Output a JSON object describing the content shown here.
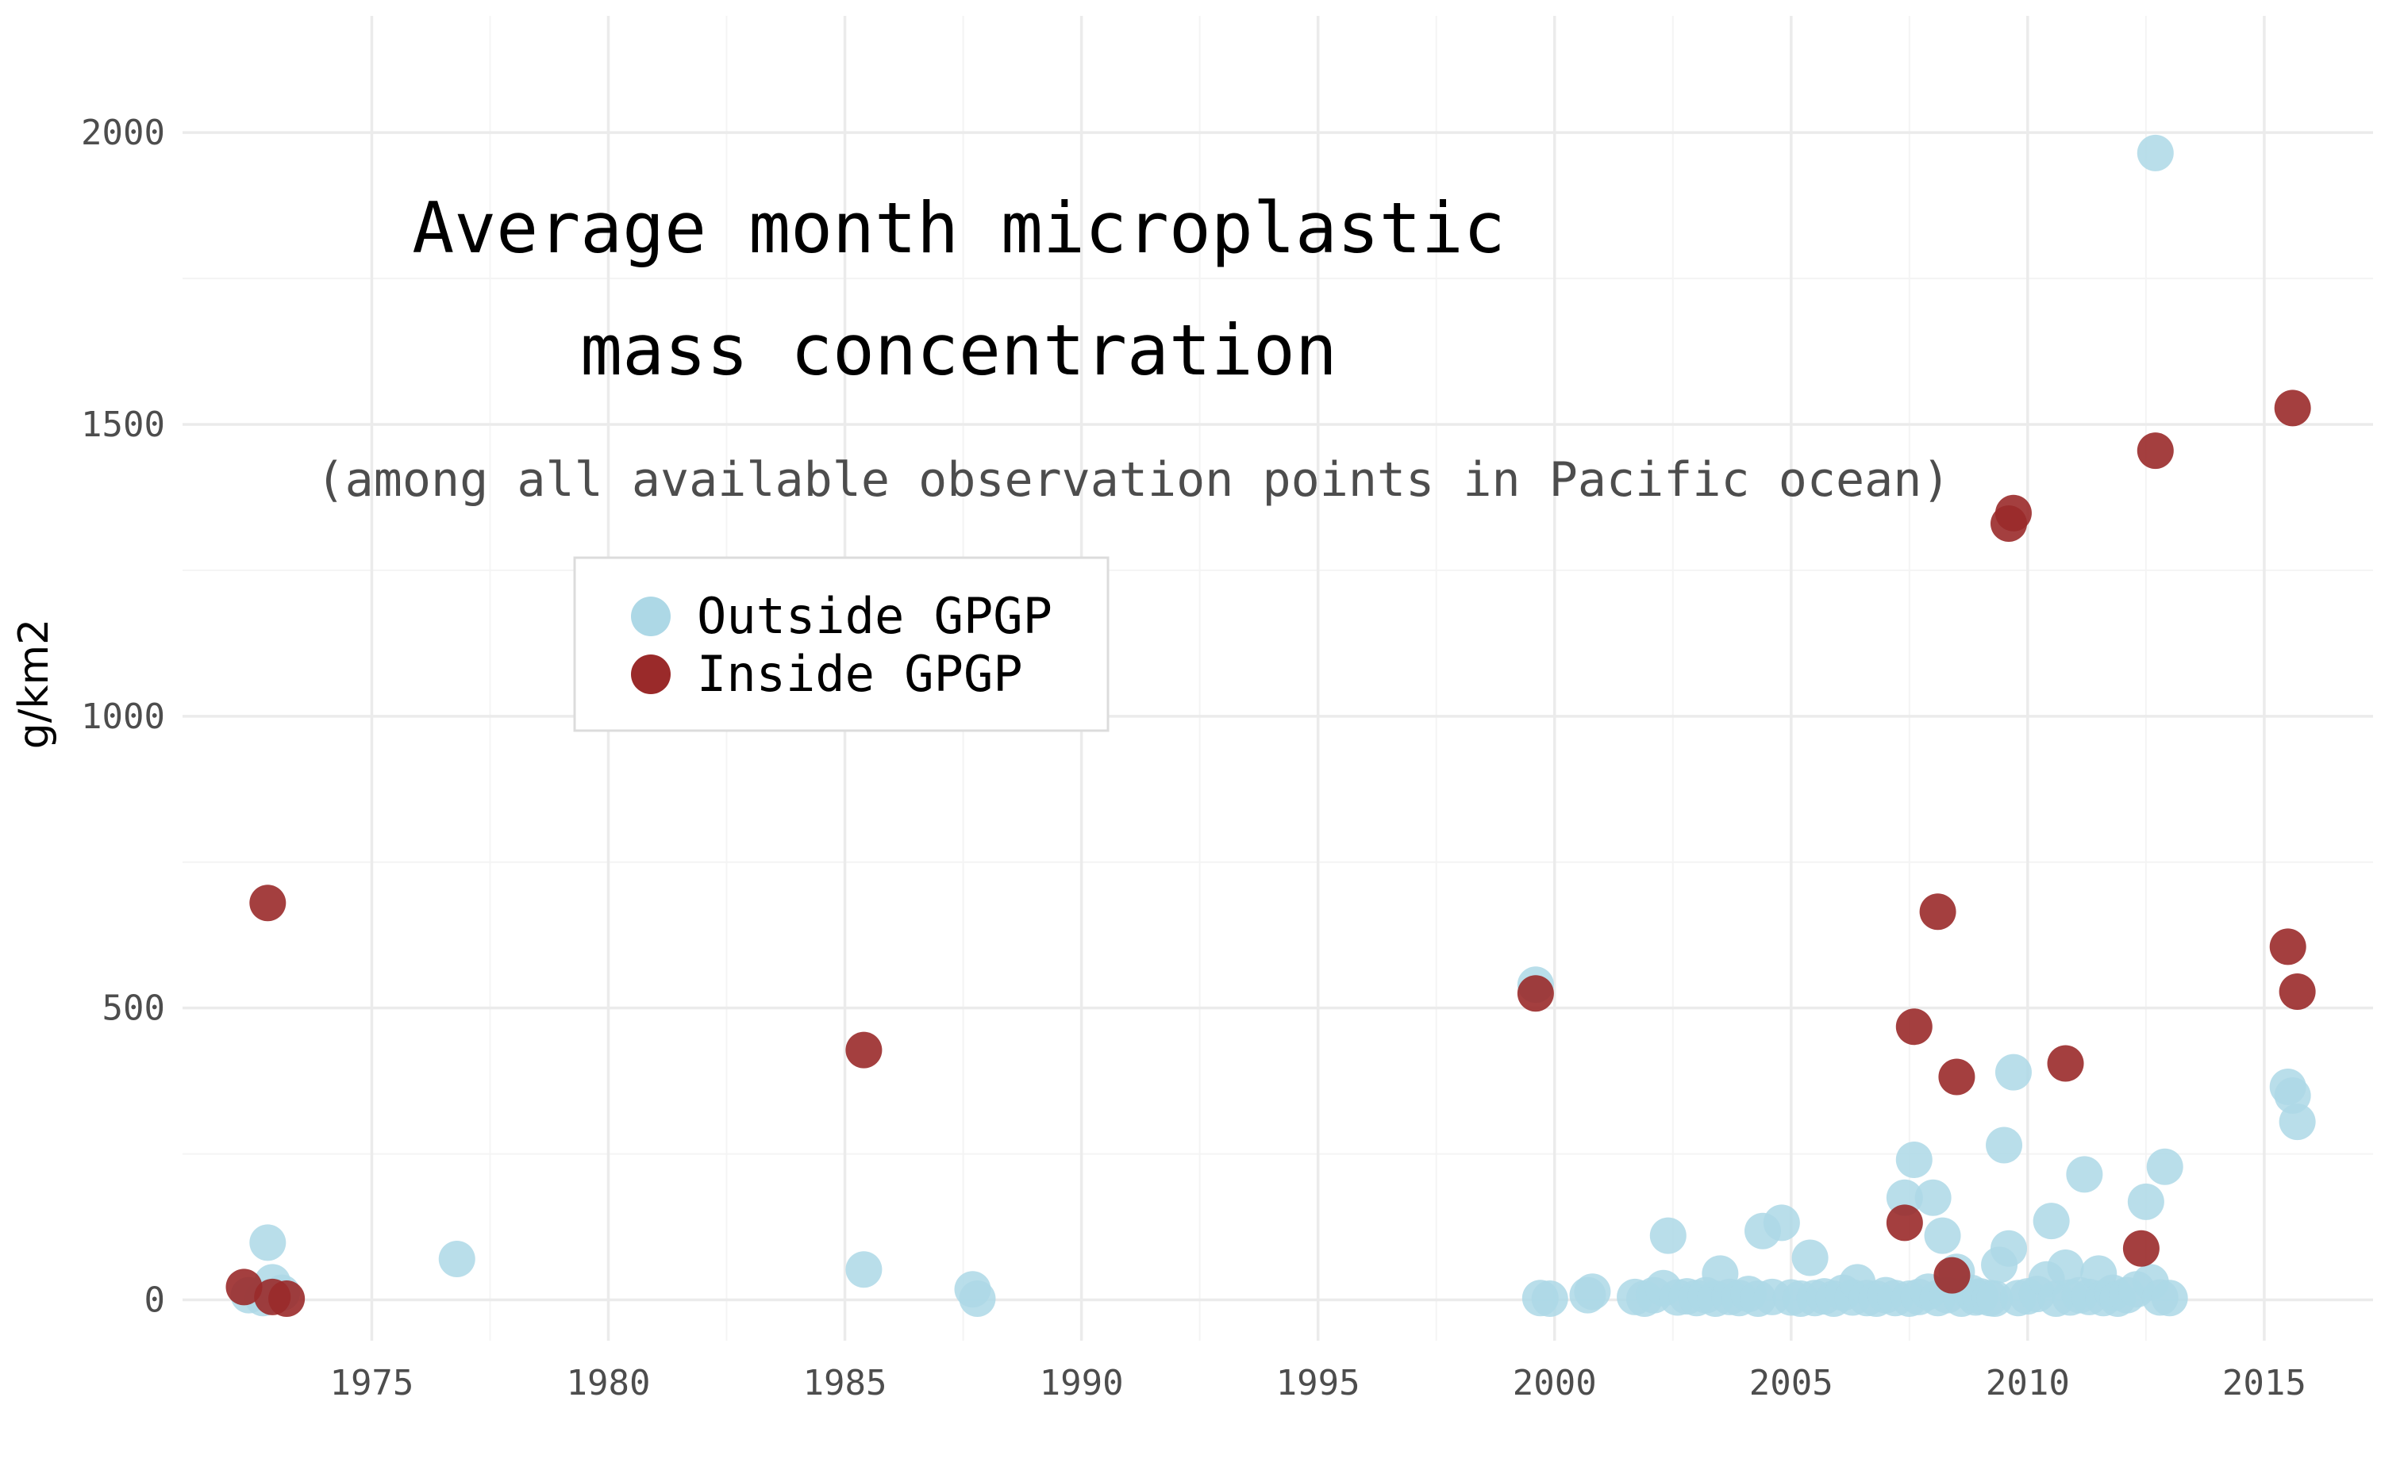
{
  "chart_data": {
    "type": "scatter",
    "title": "Average month microplastic",
    "title_line2": "mass concentration",
    "subtitle": "(among all available observation points in Pacific ocean)",
    "xlabel": "",
    "ylabel": "g/km2",
    "xlim": [
      1971,
      2017.3
    ],
    "ylim": [
      -70,
      2200
    ],
    "x_ticks": [
      1975,
      1980,
      1985,
      1990,
      1995,
      2000,
      2005,
      2010,
      2015
    ],
    "y_ticks": [
      0,
      500,
      1000,
      1500,
      2000
    ],
    "grid": true,
    "legend_position": "upper-left-inside",
    "series": [
      {
        "name": "Outside GPGP",
        "color": "#add8e6",
        "points": [
          [
            1972.4,
            8
          ],
          [
            1972.7,
            3
          ],
          [
            1972.8,
            98
          ],
          [
            1972.9,
            30
          ],
          [
            1973.1,
            12
          ],
          [
            1976.8,
            70
          ],
          [
            1985.4,
            52
          ],
          [
            1987.7,
            18
          ],
          [
            1987.8,
            2
          ],
          [
            1999.6,
            540
          ],
          [
            1999.7,
            3
          ],
          [
            1999.9,
            2
          ],
          [
            2000.7,
            8
          ],
          [
            2000.8,
            14
          ],
          [
            2001.7,
            5
          ],
          [
            2001.9,
            2
          ],
          [
            2002.1,
            8
          ],
          [
            2002.3,
            20
          ],
          [
            2002.4,
            110
          ],
          [
            2002.6,
            4
          ],
          [
            2002.8,
            6
          ],
          [
            2003.0,
            3
          ],
          [
            2003.2,
            8
          ],
          [
            2003.4,
            2
          ],
          [
            2003.5,
            45
          ],
          [
            2003.7,
            5
          ],
          [
            2003.9,
            3
          ],
          [
            2004.1,
            10
          ],
          [
            2004.3,
            2
          ],
          [
            2004.4,
            118
          ],
          [
            2004.6,
            5
          ],
          [
            2004.8,
            132
          ],
          [
            2005.0,
            4
          ],
          [
            2005.2,
            2
          ],
          [
            2005.4,
            72
          ],
          [
            2005.5,
            3
          ],
          [
            2005.7,
            6
          ],
          [
            2005.9,
            2
          ],
          [
            2006.1,
            12
          ],
          [
            2006.3,
            4
          ],
          [
            2006.4,
            30
          ],
          [
            2006.6,
            3
          ],
          [
            2006.8,
            2
          ],
          [
            2007.0,
            8
          ],
          [
            2007.2,
            3
          ],
          [
            2007.4,
            175
          ],
          [
            2007.5,
            2
          ],
          [
            2007.6,
            240
          ],
          [
            2007.7,
            5
          ],
          [
            2007.9,
            14
          ],
          [
            2008.0,
            175
          ],
          [
            2008.1,
            3
          ],
          [
            2008.2,
            110
          ],
          [
            2008.3,
            8
          ],
          [
            2008.5,
            48
          ],
          [
            2008.6,
            2
          ],
          [
            2008.8,
            12
          ],
          [
            2008.9,
            4
          ],
          [
            2009.0,
            6
          ],
          [
            2009.2,
            3
          ],
          [
            2009.3,
            2
          ],
          [
            2009.4,
            60
          ],
          [
            2009.5,
            265
          ],
          [
            2009.6,
            88
          ],
          [
            2009.7,
            390
          ],
          [
            2009.8,
            3
          ],
          [
            2010.0,
            6
          ],
          [
            2010.2,
            10
          ],
          [
            2010.4,
            35
          ],
          [
            2010.5,
            135
          ],
          [
            2010.6,
            2
          ],
          [
            2010.8,
            55
          ],
          [
            2010.9,
            4
          ],
          [
            2011.1,
            8
          ],
          [
            2011.2,
            215
          ],
          [
            2011.3,
            5
          ],
          [
            2011.5,
            45
          ],
          [
            2011.6,
            3
          ],
          [
            2011.8,
            12
          ],
          [
            2011.9,
            2
          ],
          [
            2012.1,
            8
          ],
          [
            2012.3,
            18
          ],
          [
            2012.5,
            168
          ],
          [
            2012.6,
            30
          ],
          [
            2012.7,
            1965
          ],
          [
            2012.8,
            4
          ],
          [
            2012.9,
            228
          ],
          [
            2013.0,
            3
          ],
          [
            2015.5,
            365
          ],
          [
            2015.6,
            350
          ],
          [
            2015.7,
            305
          ]
        ]
      },
      {
        "name": "Inside GPGP",
        "color": "#9a2a2a",
        "points": [
          [
            1972.3,
            22
          ],
          [
            1972.8,
            680
          ],
          [
            1972.9,
            5
          ],
          [
            1973.2,
            2
          ],
          [
            1985.4,
            428
          ],
          [
            1999.6,
            525
          ],
          [
            2007.4,
            132
          ],
          [
            2007.6,
            468
          ],
          [
            2008.1,
            665
          ],
          [
            2008.4,
            42
          ],
          [
            2008.5,
            382
          ],
          [
            2009.6,
            1330
          ],
          [
            2009.7,
            1348
          ],
          [
            2010.8,
            405
          ],
          [
            2012.4,
            88
          ],
          [
            2012.7,
            1455
          ],
          [
            2015.5,
            605
          ],
          [
            2015.6,
            1528
          ],
          [
            2015.7,
            528
          ]
        ]
      }
    ]
  }
}
